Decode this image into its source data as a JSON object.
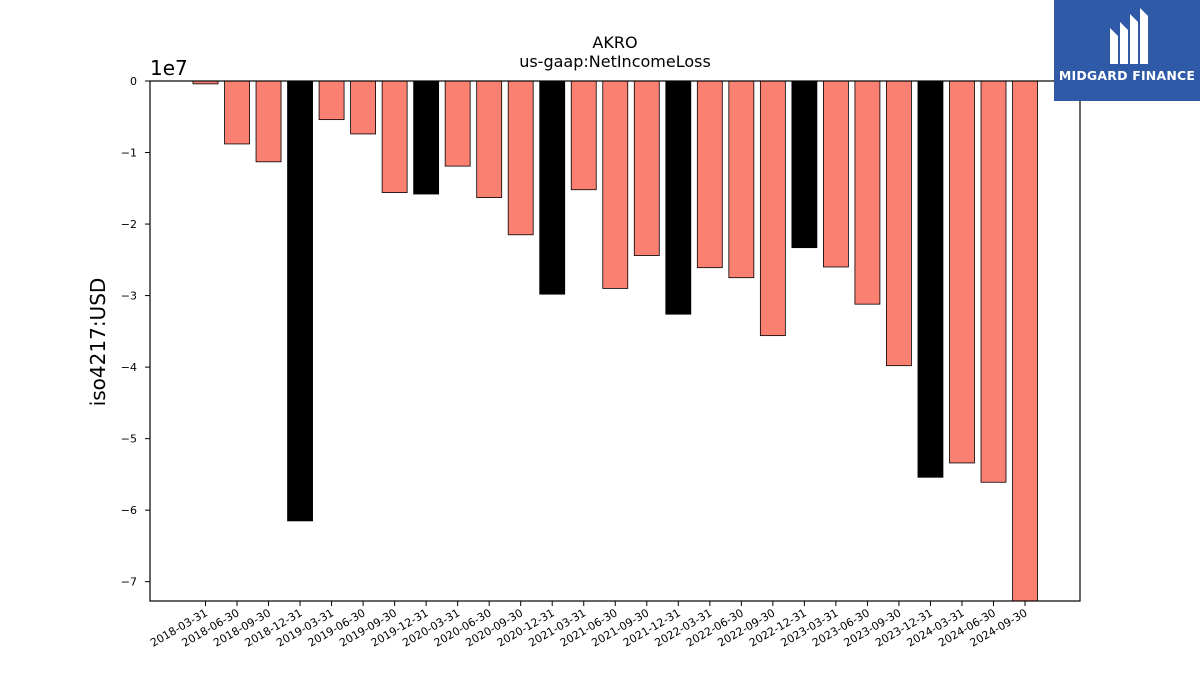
{
  "chart_data": {
    "type": "bar",
    "title": "AKRO",
    "subtitle": "us-gaap:NetIncomeLoss",
    "ylabel": "iso4217:USD",
    "xlabel": "",
    "y_scale_label": "1e7",
    "y_multiplier": 10000000,
    "ylim": [
      -7.27,
      0
    ],
    "yticks": [
      0,
      -1,
      -2,
      -3,
      -4,
      -5,
      -6,
      -7
    ],
    "ytick_labels": [
      "0",
      "−1",
      "−2",
      "−3",
      "−4",
      "−5",
      "−6",
      "−7"
    ],
    "categories": [
      "2018-03-31",
      "2018-06-30",
      "2018-09-30",
      "2018-12-31",
      "2019-03-31",
      "2019-06-30",
      "2019-09-30",
      "2019-12-31",
      "2020-03-31",
      "2020-06-30",
      "2020-09-30",
      "2020-12-31",
      "2021-03-31",
      "2021-06-30",
      "2021-09-30",
      "2021-12-31",
      "2022-03-31",
      "2022-06-30",
      "2022-09-30",
      "2022-12-31",
      "2023-03-31",
      "2023-06-30",
      "2023-09-30",
      "2023-12-31",
      "2024-03-31",
      "2024-06-30",
      "2024-09-30"
    ],
    "values": [
      -0.04,
      -0.88,
      -1.13,
      -6.15,
      -0.54,
      -0.74,
      -1.56,
      -1.58,
      -1.19,
      -1.63,
      -2.15,
      -2.98,
      -1.52,
      -2.9,
      -2.44,
      -3.26,
      -2.61,
      -2.75,
      -3.56,
      -2.33,
      -2.6,
      -3.12,
      -3.98,
      -5.54,
      -5.34,
      -5.61,
      -7.27
    ],
    "highlight": [
      false,
      false,
      false,
      true,
      false,
      false,
      false,
      true,
      false,
      false,
      false,
      true,
      false,
      false,
      false,
      true,
      false,
      false,
      false,
      true,
      false,
      false,
      false,
      true,
      false,
      false,
      false
    ],
    "colors": {
      "normal": "#fa8072",
      "highlight": "#000000",
      "edge": "#000000"
    },
    "grid": false
  },
  "logo": {
    "text": "MIDGARD FINANCE",
    "background": "#2f5aa8"
  }
}
